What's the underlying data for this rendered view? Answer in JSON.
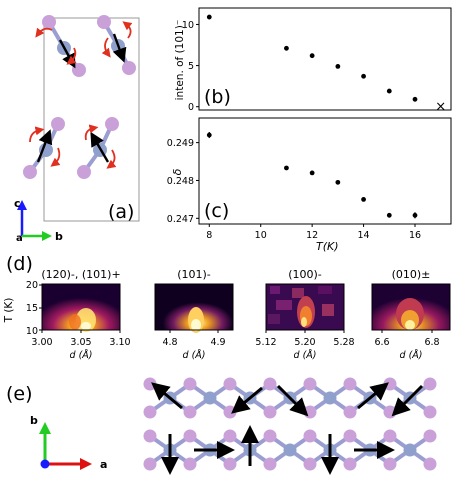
{
  "panel_labels": {
    "a": "(a)",
    "b": "(b)",
    "c": "(c)",
    "d": "(d)",
    "e": "(e)"
  },
  "axes_a": {
    "c": "c",
    "a": "a",
    "b": "b"
  },
  "axes_e": {
    "b": "b",
    "a": "a"
  },
  "colors": {
    "atom_pink": "#c9a0d8",
    "atom_blue": "#8fa0cc",
    "bond": "#9a9ed0",
    "arrow_black": "#000000",
    "arrow_red": "#e03020",
    "axis_blue": "#1a1aff",
    "axis_green": "#22cc22",
    "axis_red": "#dd1111"
  },
  "chart_data": [
    {
      "id": "b",
      "type": "scatter",
      "ylabel": "inten. of (101)⁻",
      "x": [
        8,
        11,
        12,
        13,
        14,
        15,
        16
      ],
      "values": [
        10.9,
        7.1,
        6.2,
        4.9,
        3.7,
        1.9,
        0.9
      ],
      "absent_marker": {
        "x": 17,
        "y": 0.0,
        "symbol": "×"
      },
      "yticks": [
        "0",
        "5",
        "10"
      ],
      "ylim": [
        -0.4,
        12.0
      ],
      "xlim": [
        7.6,
        17.4
      ]
    },
    {
      "id": "c",
      "type": "scatter",
      "ylabel": "δ",
      "xlabel": "T(K)",
      "x": [
        8,
        11,
        12,
        13,
        14,
        15,
        16
      ],
      "values": [
        0.2492,
        0.24833,
        0.2482,
        0.24795,
        0.2475,
        0.24708,
        0.24708
      ],
      "errors": [
        8e-05,
        4e-05,
        4e-05,
        4e-05,
        4e-05,
        5e-05,
        8e-05
      ],
      "xticks": [
        "8",
        "10",
        "12",
        "14",
        "16"
      ],
      "yticks": [
        "0.247",
        "0.248",
        "0.249"
      ],
      "ylim": [
        0.24685,
        0.24965
      ],
      "xlim": [
        7.6,
        17.4
      ]
    },
    {
      "id": "d",
      "type": "heatmap",
      "ylabel": "T (K)",
      "yticks": [
        "10",
        "15",
        "20"
      ],
      "panels": [
        {
          "title": "(120)-, (101)+",
          "xlabel": "d (Å)",
          "xticks": [
            "3.00",
            "3.05",
            "3.10"
          ]
        },
        {
          "title": "(101)-",
          "xlabel": "d (Å)",
          "xticks": [
            "4.8",
            "4.9"
          ]
        },
        {
          "title": "(100)-",
          "xlabel": "d (Å)",
          "xticks": [
            "5.12",
            "5.20",
            "5.28"
          ]
        },
        {
          "title": "(010)±",
          "xlabel": "d (Å)",
          "xticks": [
            "6.6",
            "6.8"
          ]
        }
      ]
    }
  ]
}
